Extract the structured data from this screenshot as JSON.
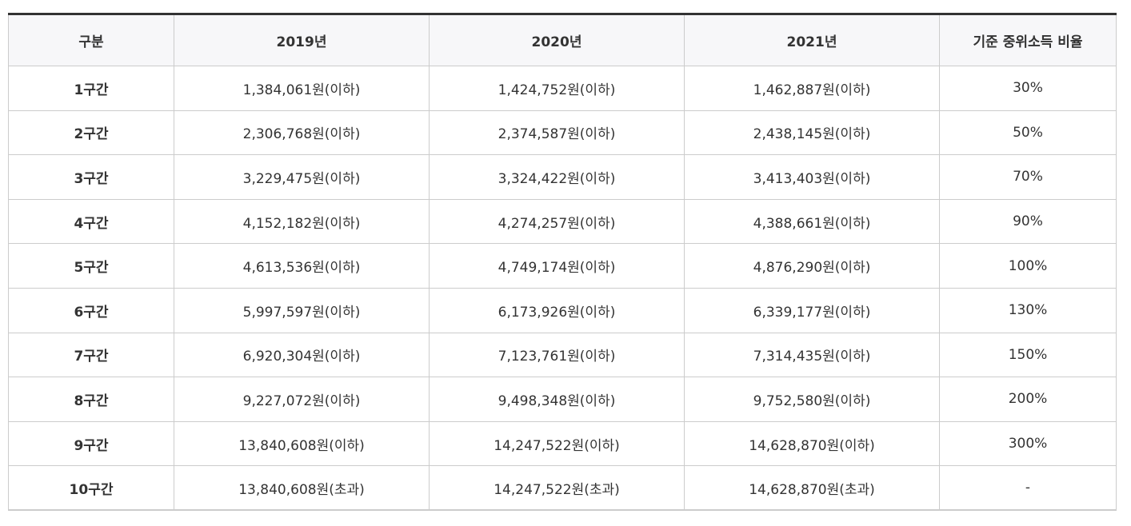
{
  "table": {
    "headers": [
      "구분",
      "2019년",
      "2020년",
      "2021년",
      "기준 중위소득 비율"
    ],
    "rows": [
      [
        "1구간",
        "1,384,061원(이하)",
        "1,424,752원(이하)",
        "1,462,887원(이하)",
        "30%"
      ],
      [
        "2구간",
        "2,306,768원(이하)",
        "2,374,587원(이하)",
        "2,438,145원(이하)",
        "50%"
      ],
      [
        "3구간",
        "3,229,475원(이하)",
        "3,324,422원(이하)",
        "3,413,403원(이하)",
        "70%"
      ],
      [
        "4구간",
        "4,152,182원(이하)",
        "4,274,257원(이하)",
        "4,388,661원(이하)",
        "90%"
      ],
      [
        "5구간",
        "4,613,536원(이하)",
        "4,749,174원(이하)",
        "4,876,290원(이하)",
        "100%"
      ],
      [
        "6구간",
        "5,997,597원(이하)",
        "6,173,926원(이하)",
        "6,339,177원(이하)",
        "130%"
      ],
      [
        "7구간",
        "6,920,304원(이하)",
        "7,123,761원(이하)",
        "7,314,435원(이하)",
        "150%"
      ],
      [
        "8구간",
        "9,227,072원(이하)",
        "9,498,348원(이하)",
        "9,752,580원(이하)",
        "200%"
      ],
      [
        "9구간",
        "13,840,608원(이하)",
        "14,247,522원(이하)",
        "14,628,870원(이하)",
        "300%"
      ],
      [
        "10구간",
        "13,840,608원(초과)",
        "14,247,522원(초과)",
        "14,628,870원(초과)",
        "-"
      ]
    ]
  },
  "colors": {
    "header_bg": "#f7f7f9",
    "border": "#cccccc",
    "top_rule": "#333333",
    "text": "#333333"
  }
}
